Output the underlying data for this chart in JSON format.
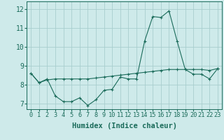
{
  "xlabel": "Humidex (Indice chaleur)",
  "bg_color": "#ceeaea",
  "line_color": "#1a6b5a",
  "line1_x": [
    0,
    1,
    2,
    3,
    4,
    5,
    6,
    7,
    8,
    9,
    10,
    11,
    12,
    13,
    14,
    15,
    16,
    17,
    18,
    19,
    20,
    21,
    22,
    23
  ],
  "line1_y": [
    8.6,
    8.1,
    8.3,
    7.4,
    7.1,
    7.1,
    7.3,
    6.9,
    7.2,
    7.7,
    7.75,
    8.4,
    8.3,
    8.3,
    10.3,
    11.6,
    11.55,
    11.9,
    10.3,
    8.8,
    8.55,
    8.55,
    8.3,
    8.85
  ],
  "line2_x": [
    0,
    1,
    2,
    3,
    4,
    5,
    6,
    7,
    8,
    9,
    10,
    11,
    12,
    13,
    14,
    15,
    16,
    17,
    18,
    19,
    20,
    21,
    22,
    23
  ],
  "line2_y": [
    8.6,
    8.1,
    8.25,
    8.3,
    8.3,
    8.3,
    8.3,
    8.3,
    8.35,
    8.4,
    8.45,
    8.5,
    8.55,
    8.6,
    8.65,
    8.7,
    8.75,
    8.8,
    8.8,
    8.8,
    8.8,
    8.8,
    8.75,
    8.85
  ],
  "xlim": [
    -0.5,
    23.5
  ],
  "ylim": [
    6.7,
    12.4
  ],
  "yticks": [
    7,
    8,
    9,
    10,
    11,
    12
  ],
  "xticks": [
    0,
    1,
    2,
    3,
    4,
    5,
    6,
    7,
    8,
    9,
    10,
    11,
    12,
    13,
    14,
    15,
    16,
    17,
    18,
    19,
    20,
    21,
    22,
    23
  ],
  "grid_color": "#a8cece",
  "xlabel_fontsize": 7.5,
  "tick_fontsize": 6.2,
  "ytick_fontsize": 7.0
}
